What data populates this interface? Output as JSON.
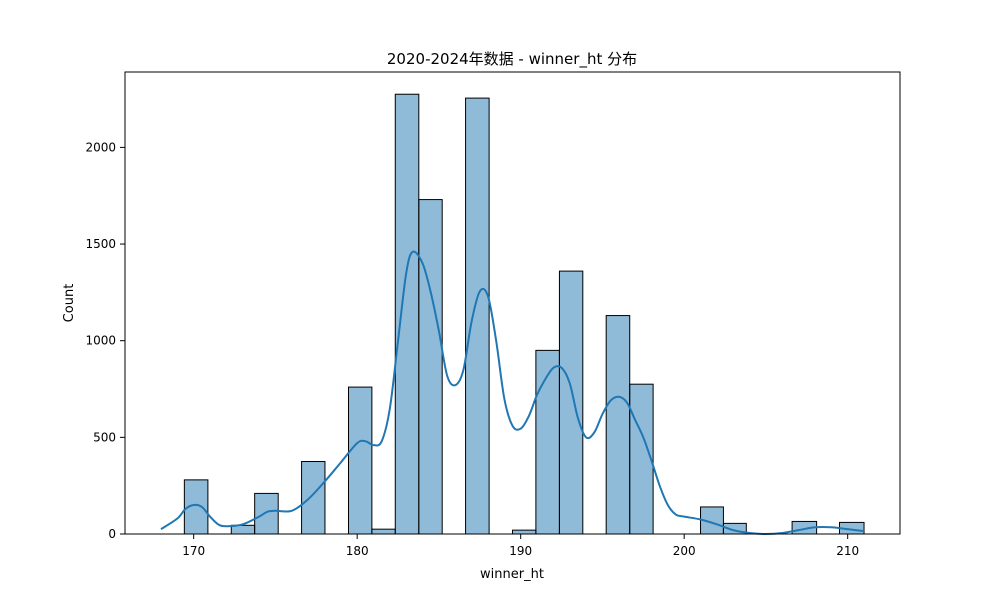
{
  "chart_data": {
    "type": "bar",
    "title": "2020-2024年数据 - winner_ht 分布",
    "xlabel": "winner_ht",
    "ylabel": "Count",
    "xlim": [
      165.8,
      213.2
    ],
    "ylim": [
      0,
      2390
    ],
    "grid": false,
    "legend": "none",
    "x_ticks": [
      170,
      180,
      190,
      200,
      210
    ],
    "y_ticks": [
      0,
      500,
      1000,
      1500,
      2000
    ],
    "bin_start": 168,
    "bin_width": 1.4333,
    "bins": [
      {
        "start": 169.43,
        "end": 170.87,
        "count": 280
      },
      {
        "start": 172.3,
        "end": 173.73,
        "count": 45
      },
      {
        "start": 173.73,
        "end": 175.17,
        "count": 210
      },
      {
        "start": 176.6,
        "end": 178.03,
        "count": 375
      },
      {
        "start": 179.47,
        "end": 180.9,
        "count": 760
      },
      {
        "start": 180.9,
        "end": 182.33,
        "count": 25
      },
      {
        "start": 182.33,
        "end": 183.77,
        "count": 2275
      },
      {
        "start": 183.77,
        "end": 185.2,
        "count": 1730
      },
      {
        "start": 186.63,
        "end": 188.07,
        "count": 2255
      },
      {
        "start": 189.5,
        "end": 190.93,
        "count": 20
      },
      {
        "start": 190.93,
        "end": 192.37,
        "count": 950
      },
      {
        "start": 192.37,
        "end": 193.8,
        "count": 1360
      },
      {
        "start": 195.23,
        "end": 196.67,
        "count": 1130
      },
      {
        "start": 196.67,
        "end": 198.1,
        "count": 775
      },
      {
        "start": 201.0,
        "end": 202.4,
        "count": 140
      },
      {
        "start": 202.4,
        "end": 203.8,
        "count": 55
      },
      {
        "start": 206.6,
        "end": 208.1,
        "count": 65
      },
      {
        "start": 209.5,
        "end": 211.0,
        "count": 60
      }
    ],
    "kde": {
      "x": [
        168,
        169,
        169.5,
        170,
        170.5,
        171,
        171.5,
        172,
        173,
        174,
        174.5,
        175,
        176,
        177,
        178,
        179,
        180,
        180.5,
        181,
        181.5,
        182,
        182.5,
        183,
        183.4,
        184,
        184.5,
        185,
        185.5,
        186,
        186.5,
        187,
        187.5,
        188,
        188.5,
        189,
        189.5,
        190,
        190.5,
        191,
        191.5,
        192,
        192.5,
        193,
        193.5,
        194,
        194.5,
        195,
        195.5,
        196,
        196.5,
        197,
        197.5,
        198,
        198.5,
        199,
        199.5,
        200,
        201,
        202,
        203,
        204,
        205,
        206,
        207,
        208,
        209,
        210,
        211
      ],
      "y": [
        25,
        80,
        130,
        150,
        140,
        90,
        50,
        40,
        50,
        90,
        115,
        120,
        120,
        180,
        270,
        370,
        470,
        480,
        460,
        480,
        650,
        1000,
        1350,
        1460,
        1400,
        1250,
        1050,
        820,
        770,
        850,
        1100,
        1255,
        1230,
        1000,
        700,
        560,
        545,
        610,
        720,
        800,
        860,
        860,
        780,
        600,
        500,
        525,
        620,
        690,
        710,
        680,
        590,
        500,
        380,
        250,
        150,
        100,
        90,
        75,
        50,
        20,
        5,
        0,
        5,
        20,
        35,
        35,
        25,
        15
      ]
    }
  }
}
